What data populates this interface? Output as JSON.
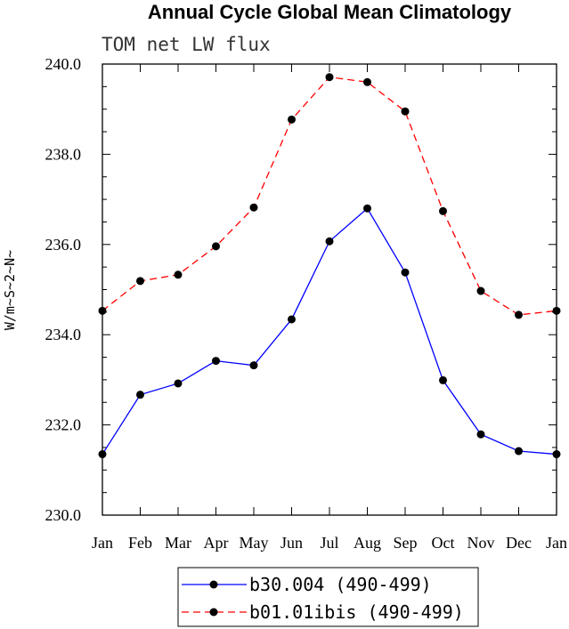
{
  "chart_data": {
    "type": "line",
    "title": "Annual Cycle Global Mean Climatology",
    "subtitle": "TOM net LW flux",
    "xlabel": "",
    "ylabel": "W/m~S~2~N~",
    "categories": [
      "Jan",
      "Feb",
      "Mar",
      "Apr",
      "May",
      "Jun",
      "Jul",
      "Aug",
      "Sep",
      "Oct",
      "Nov",
      "Dec",
      "Jan"
    ],
    "ylim": [
      230.0,
      240.0
    ],
    "yticks": [
      "230.0",
      "232.0",
      "234.0",
      "236.0",
      "238.0",
      "240.0"
    ],
    "grid": false,
    "legend_position": "bottom-center",
    "series": [
      {
        "name": "b30.004 (490-499)",
        "color": "#0000ff",
        "line_style": "solid",
        "values": [
          231.35,
          232.67,
          232.92,
          233.42,
          233.32,
          234.34,
          236.07,
          236.8,
          235.38,
          232.99,
          231.79,
          231.42,
          231.35
        ]
      },
      {
        "name": "b01.01ibis (490-499)",
        "color": "#ff0000",
        "line_style": "dashed",
        "values": [
          234.53,
          235.19,
          235.33,
          235.96,
          236.82,
          238.77,
          239.71,
          239.6,
          238.95,
          236.74,
          234.97,
          234.44,
          234.53
        ]
      }
    ]
  }
}
